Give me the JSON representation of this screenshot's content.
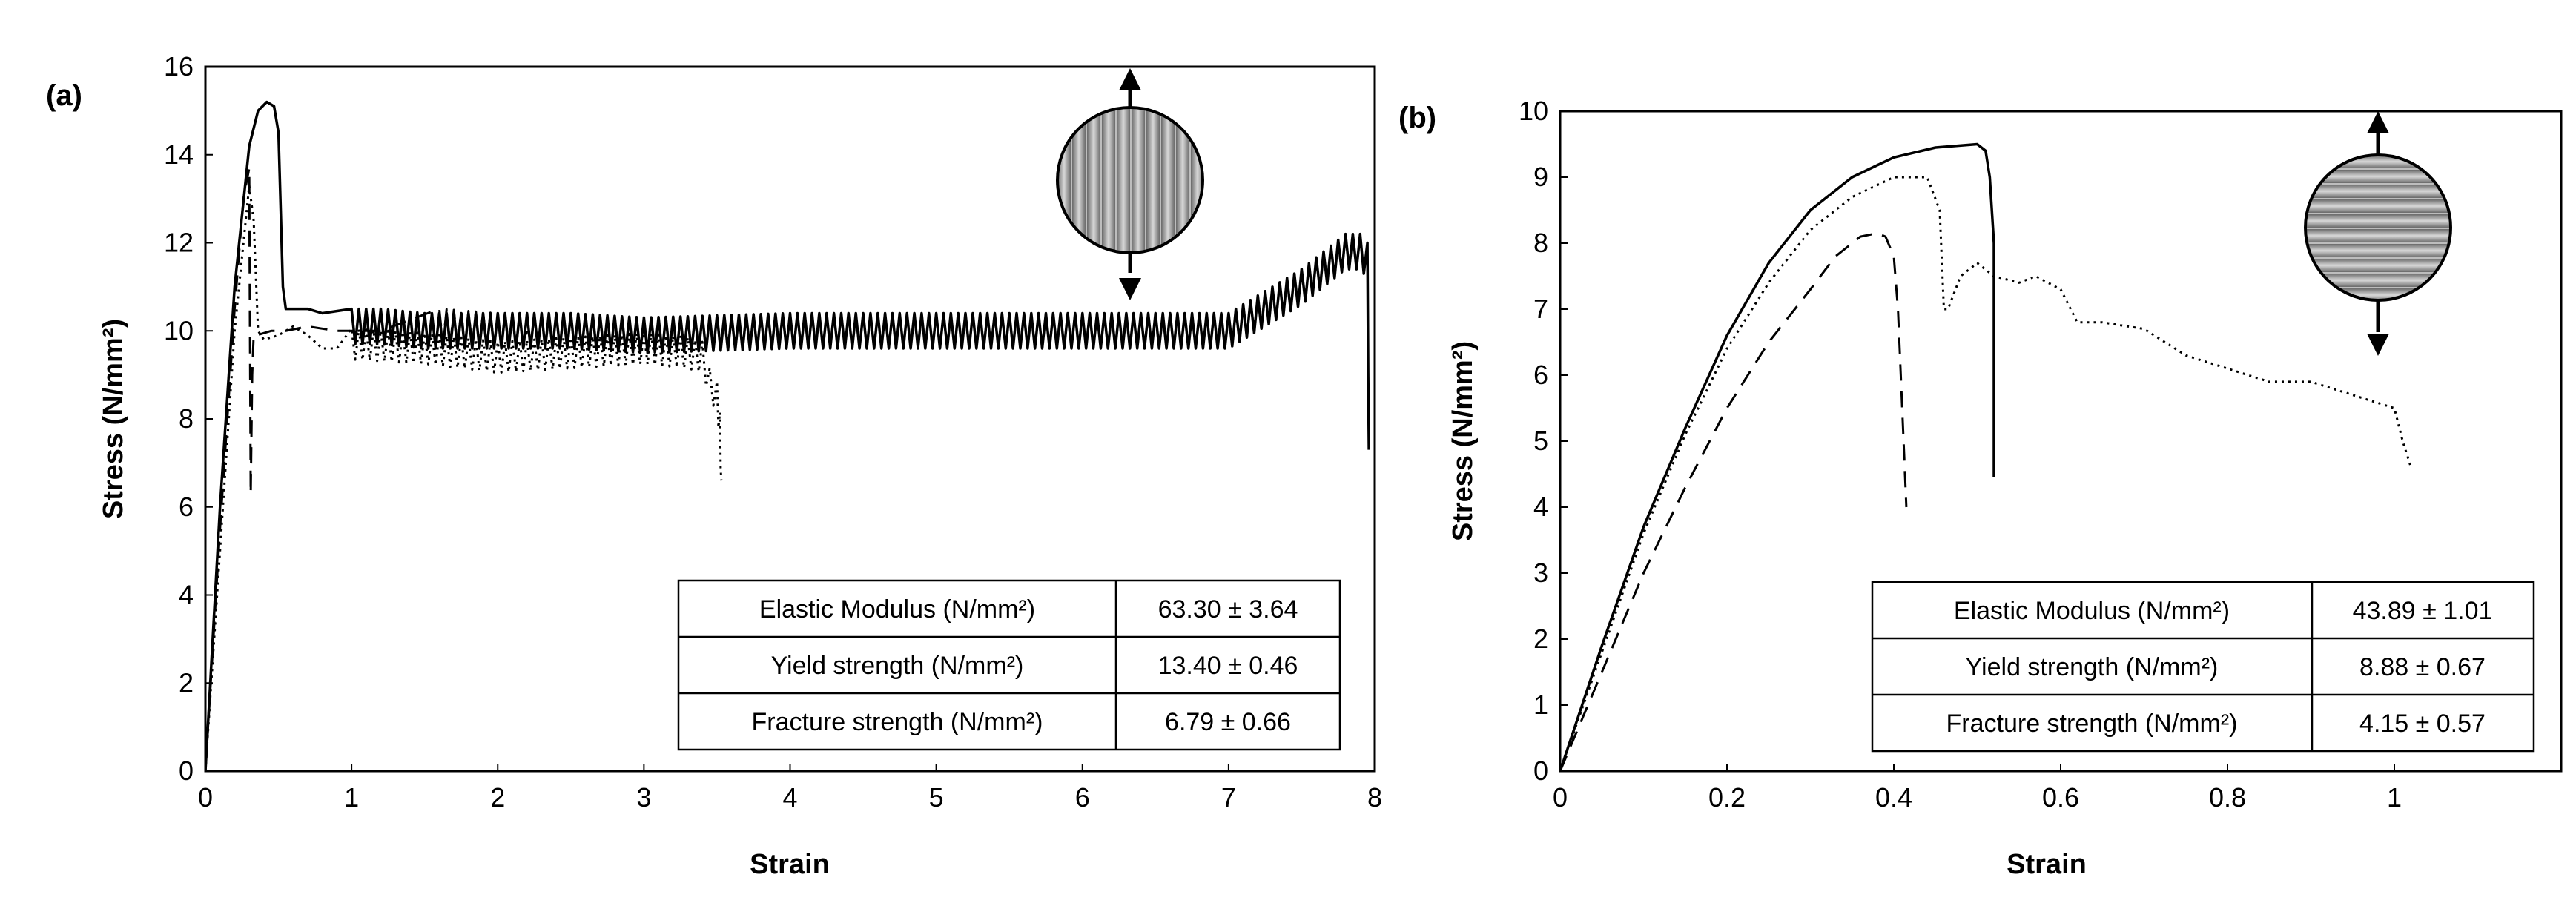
{
  "chart_data": [
    {
      "type": "line",
      "panel_label": "(a)",
      "xlabel": "Strain",
      "ylabel": "Stress (N/mm²)",
      "xlim": [
        0,
        8
      ],
      "ylim": [
        0,
        16
      ],
      "x_ticks": [
        "0",
        "1",
        "2",
        "3",
        "4",
        "5",
        "6",
        "7",
        "8"
      ],
      "y_ticks": [
        "0",
        "2",
        "4",
        "6",
        "8",
        "10",
        "12",
        "14",
        "16"
      ],
      "inset_icon": "circle-vertical-stripes-arrows-vertical-icon",
      "series": [
        {
          "name": "solid",
          "style": "solid",
          "x": [
            0,
            0.1,
            0.2,
            0.3,
            0.36,
            0.42,
            0.47,
            0.5,
            0.53,
            0.55,
            0.6,
            0.7,
            0.8,
            1.0,
            1.2,
            1.5,
            2.0,
            2.5,
            3.0,
            4.0,
            5.0,
            6.0,
            7.0,
            7.2,
            7.5,
            7.8,
            7.9,
            7.95,
            7.96
          ],
          "y": [
            0,
            6,
            11,
            14.2,
            15.0,
            15.2,
            15.1,
            14.5,
            11.0,
            10.5,
            10.5,
            10.5,
            10.4,
            10.1,
            10.1,
            10.0,
            10.0,
            10.0,
            9.9,
            10.0,
            10.0,
            10.0,
            10.0,
            10.4,
            11.0,
            11.8,
            11.8,
            11.6,
            7.3
          ],
          "oscillation_from": 1.0,
          "oscillation_amp": 0.4
        },
        {
          "name": "dashed",
          "style": "dashed",
          "x": [
            0,
            0.1,
            0.2,
            0.26,
            0.3,
            0.31,
            0.32,
            0.33,
            0.35,
            0.45,
            0.55,
            0.7,
            0.9,
            1.2,
            1.6,
            2.0,
            2.2
          ],
          "y": [
            0,
            5.5,
            10.5,
            13.0,
            13.7,
            6.3,
            9.0,
            9.9,
            9.9,
            10.0,
            10.0,
            10.1,
            10.0,
            10.0,
            10.1,
            10.0,
            10.0
          ],
          "oscillation_from": 1.3,
          "oscillation_amp": 0.4
        },
        {
          "name": "dotted",
          "style": "dotted",
          "x": [
            0,
            0.1,
            0.2,
            0.3,
            0.33,
            0.36,
            0.4,
            0.5,
            0.6,
            0.7,
            0.8,
            0.9,
            1.0,
            1.5,
            2.0,
            2.5,
            3.0,
            3.3,
            3.4,
            3.45,
            3.5,
            3.52,
            3.53
          ],
          "y": [
            0,
            5.0,
            10.0,
            13.3,
            12.5,
            10.0,
            9.8,
            9.9,
            10.1,
            9.9,
            9.6,
            9.6,
            9.7,
            9.6,
            9.4,
            9.5,
            9.6,
            9.5,
            9.4,
            8.8,
            8.5,
            7.8,
            6.6
          ],
          "oscillation_from": 1.0,
          "oscillation_amp": 0.35
        }
      ],
      "table": [
        {
          "label": "Elastic Modulus (N/mm²)",
          "value": "63.30 ± 3.64"
        },
        {
          "label": "Yield strength (N/mm²)",
          "value": "13.40 ± 0.46"
        },
        {
          "label": "Fracture strength (N/mm²)",
          "value": "6.79 ± 0.66"
        }
      ]
    },
    {
      "type": "line",
      "panel_label": "(b)",
      "xlabel": "Strain",
      "ylabel": "Stress (N/mm²)",
      "xlim": [
        0,
        1.2
      ],
      "ylim": [
        0,
        10
      ],
      "x_ticks": [
        "0",
        "0.2",
        "0.4",
        "0.6",
        "0.8",
        "1"
      ],
      "x_tick_values": [
        0,
        0.2,
        0.4,
        0.6,
        0.8,
        1.0
      ],
      "y_ticks": [
        "0",
        "1",
        "2",
        "3",
        "4",
        "5",
        "6",
        "7",
        "8",
        "9",
        "10"
      ],
      "inset_icon": "circle-horizontal-stripes-arrows-vertical-icon",
      "series": [
        {
          "name": "solid",
          "style": "solid",
          "x": [
            0,
            0.05,
            0.1,
            0.15,
            0.2,
            0.25,
            0.3,
            0.35,
            0.4,
            0.45,
            0.5,
            0.51,
            0.515,
            0.52,
            0.52
          ],
          "y": [
            0,
            1.9,
            3.7,
            5.2,
            6.6,
            7.7,
            8.5,
            9.0,
            9.3,
            9.45,
            9.5,
            9.4,
            9.0,
            8.0,
            4.45
          ],
          "oscillation_from": null,
          "oscillation_amp": 0
        },
        {
          "name": "dashed",
          "style": "dashed",
          "x": [
            0,
            0.05,
            0.1,
            0.15,
            0.2,
            0.25,
            0.3,
            0.33,
            0.36,
            0.38,
            0.39,
            0.4,
            0.405,
            0.41,
            0.415
          ],
          "y": [
            0,
            1.5,
            3.0,
            4.3,
            5.5,
            6.5,
            7.3,
            7.8,
            8.1,
            8.15,
            8.1,
            7.8,
            7.0,
            5.5,
            4.0
          ],
          "oscillation_from": null,
          "oscillation_amp": 0
        },
        {
          "name": "dotted",
          "style": "dotted",
          "x": [
            0,
            0.05,
            0.1,
            0.15,
            0.2,
            0.25,
            0.3,
            0.35,
            0.4,
            0.44,
            0.455,
            0.46,
            0.465,
            0.48,
            0.5,
            0.52,
            0.55,
            0.57,
            0.6,
            0.62,
            0.65,
            0.7,
            0.75,
            0.8,
            0.85,
            0.9,
            0.95,
            1.0,
            1.01,
            1.02
          ],
          "y": [
            0,
            1.8,
            3.6,
            5.1,
            6.4,
            7.4,
            8.2,
            8.7,
            9.0,
            9.0,
            8.5,
            7.0,
            7.0,
            7.5,
            7.7,
            7.5,
            7.4,
            7.5,
            7.3,
            6.8,
            6.8,
            6.7,
            6.3,
            6.1,
            5.9,
            5.9,
            5.7,
            5.5,
            5.0,
            4.6
          ],
          "oscillation_from": null,
          "oscillation_amp": 0
        }
      ],
      "table": [
        {
          "label": "Elastic Modulus (N/mm²)",
          "value": "43.89 ± 1.01"
        },
        {
          "label": "Yield strength (N/mm²)",
          "value": "8.88 ± 0.67"
        },
        {
          "label": "Fracture strength (N/mm²)",
          "value": "4.15 ± 0.57"
        }
      ]
    }
  ]
}
